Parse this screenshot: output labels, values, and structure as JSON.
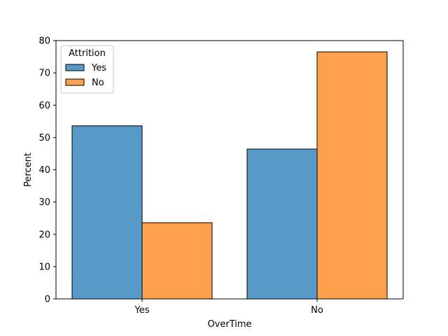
{
  "chart_data": {
    "type": "bar",
    "title": "",
    "xlabel": "OverTime",
    "ylabel": "Percent",
    "categories": [
      "Yes",
      "No"
    ],
    "ylim": [
      0,
      80
    ],
    "yticks": [
      0,
      10,
      20,
      30,
      40,
      50,
      60,
      70,
      80
    ],
    "grid": false,
    "legend": {
      "title": "Attrition",
      "placement": "top-left"
    },
    "series": [
      {
        "name": "Yes",
        "values": [
          53.6,
          46.4
        ],
        "color": "#5799c7"
      },
      {
        "name": "No",
        "values": [
          23.6,
          76.5
        ],
        "color": "#ffa04d"
      }
    ]
  }
}
